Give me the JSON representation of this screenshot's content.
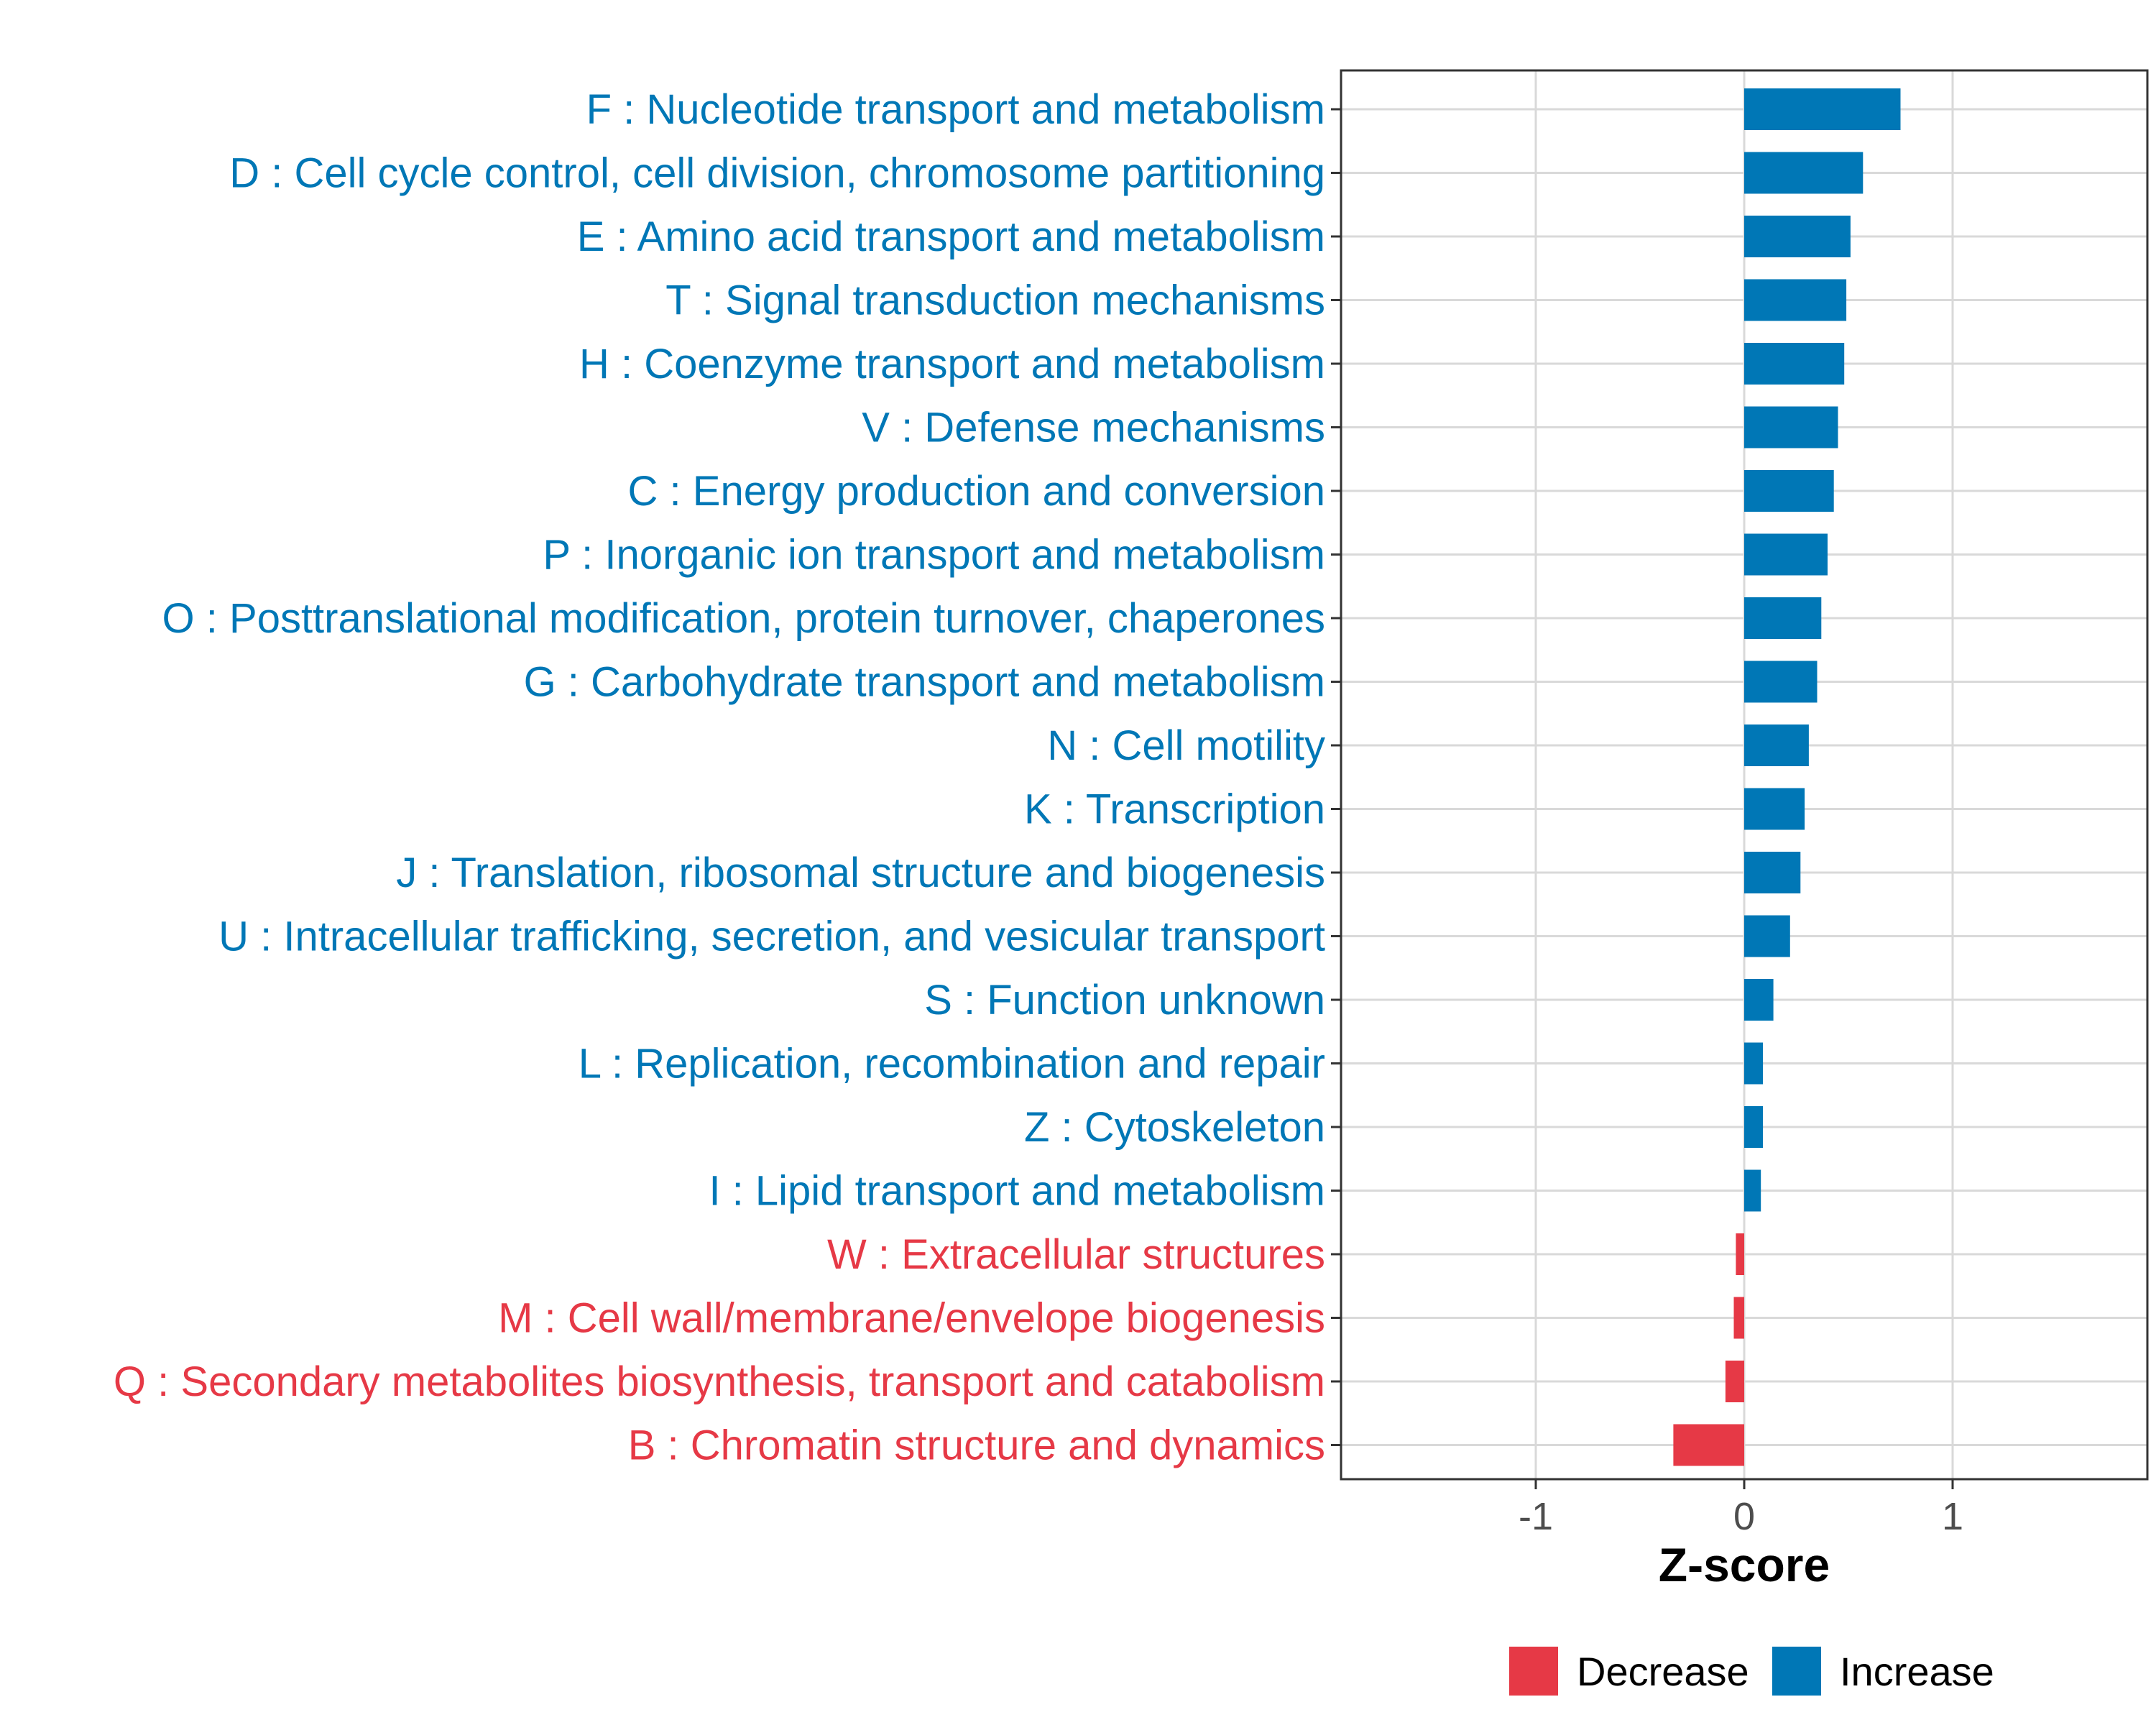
{
  "chart_data": {
    "type": "bar",
    "orientation": "horizontal",
    "xlabel": "Z-score",
    "ylabel": "",
    "xlim": [
      -1.93,
      1.93
    ],
    "xticks": [
      "-1",
      "0",
      "1"
    ],
    "xtick_values": [
      -1,
      0,
      1
    ],
    "grid": true,
    "legend_position": "bottom",
    "legend": [
      {
        "label": "Decrease",
        "color": "#e63946"
      },
      {
        "label": "Increase",
        "color": "#0077b6"
      }
    ],
    "categories": [
      {
        "label": "F : Nucleotide transport and metabolism",
        "value": 0.75,
        "direction": "Increase"
      },
      {
        "label": "D : Cell cycle control, cell division, chromosome partitioning",
        "value": 0.57,
        "direction": "Increase"
      },
      {
        "label": "E : Amino acid transport and metabolism",
        "value": 0.51,
        "direction": "Increase"
      },
      {
        "label": "T : Signal transduction mechanisms",
        "value": 0.49,
        "direction": "Increase"
      },
      {
        "label": "H : Coenzyme transport and metabolism",
        "value": 0.48,
        "direction": "Increase"
      },
      {
        "label": "V : Defense mechanisms",
        "value": 0.45,
        "direction": "Increase"
      },
      {
        "label": "C : Energy production and conversion",
        "value": 0.43,
        "direction": "Increase"
      },
      {
        "label": "P : Inorganic ion transport and metabolism",
        "value": 0.4,
        "direction": "Increase"
      },
      {
        "label": "O : Posttranslational modification, protein turnover, chaperones",
        "value": 0.37,
        "direction": "Increase"
      },
      {
        "label": "G : Carbohydrate transport and metabolism",
        "value": 0.35,
        "direction": "Increase"
      },
      {
        "label": "N : Cell motility",
        "value": 0.31,
        "direction": "Increase"
      },
      {
        "label": "K : Transcription",
        "value": 0.29,
        "direction": "Increase"
      },
      {
        "label": "J : Translation, ribosomal structure and biogenesis",
        "value": 0.27,
        "direction": "Increase"
      },
      {
        "label": "U : Intracellular trafficking, secretion, and vesicular transport",
        "value": 0.22,
        "direction": "Increase"
      },
      {
        "label": "S : Function unknown",
        "value": 0.14,
        "direction": "Increase"
      },
      {
        "label": "L : Replication, recombination and repair",
        "value": 0.09,
        "direction": "Increase"
      },
      {
        "label": "Z : Cytoskeleton",
        "value": 0.09,
        "direction": "Increase"
      },
      {
        "label": "I : Lipid transport and metabolism",
        "value": 0.08,
        "direction": "Increase"
      },
      {
        "label": "W : Extracellular structures",
        "value": -0.04,
        "direction": "Decrease"
      },
      {
        "label": "M : Cell wall/membrane/envelope biogenesis",
        "value": -0.05,
        "direction": "Decrease"
      },
      {
        "label": "Q : Secondary metabolites biosynthesis, transport and catabolism",
        "value": -0.09,
        "direction": "Decrease"
      },
      {
        "label": "B : Chromatin structure and dynamics",
        "value": -0.34,
        "direction": "Decrease"
      }
    ]
  },
  "colors": {
    "increase": "#0077b6",
    "decrease": "#e63946",
    "grid": "#d9d9d9",
    "panel_border": "#333333",
    "tick_text": "#4d4d4d"
  }
}
